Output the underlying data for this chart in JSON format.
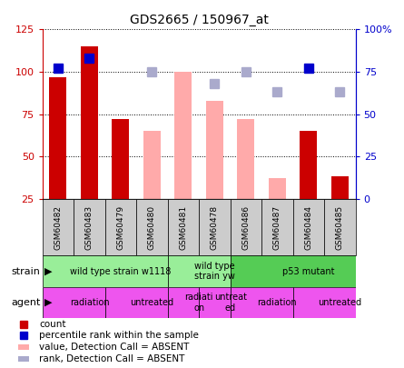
{
  "title": "GDS2665 / 150967_at",
  "samples": [
    "GSM60482",
    "GSM60483",
    "GSM60479",
    "GSM60480",
    "GSM60481",
    "GSM60478",
    "GSM60486",
    "GSM60487",
    "GSM60484",
    "GSM60485"
  ],
  "count_values": [
    97,
    115,
    72,
    null,
    null,
    null,
    null,
    null,
    65,
    38
  ],
  "count_color": "#cc0000",
  "pct_rank_values": [
    77,
    83,
    null,
    null,
    null,
    null,
    null,
    null,
    77,
    null
  ],
  "pct_rank_color": "#0000cc",
  "absent_value_values": [
    null,
    null,
    null,
    65,
    100,
    83,
    72,
    37,
    null,
    null
  ],
  "absent_value_color": "#ffaaaa",
  "absent_rank_values": [
    null,
    null,
    null,
    75,
    null,
    68,
    75,
    63,
    null,
    63
  ],
  "absent_rank_color": "#aaaacc",
  "ylim_left": [
    25,
    125
  ],
  "ylim_right": [
    0,
    100
  ],
  "left_ticks": [
    25,
    50,
    75,
    100,
    125
  ],
  "right_ticks": [
    0,
    25,
    50,
    75,
    100
  ],
  "right_tick_labels": [
    "0",
    "25",
    "50",
    "75",
    "100%"
  ],
  "strain_groups": [
    {
      "label": "wild type strain w1118",
      "start": 0,
      "end": 4,
      "color": "#99ee99"
    },
    {
      "label": "wild type\nstrain yw",
      "start": 4,
      "end": 6,
      "color": "#99ee99"
    },
    {
      "label": "p53 mutant",
      "start": 6,
      "end": 10,
      "color": "#55cc55"
    }
  ],
  "agent_groups": [
    {
      "label": "radiation",
      "start": 0,
      "end": 2,
      "color": "#ee55ee"
    },
    {
      "label": "untreated",
      "start": 2,
      "end": 4,
      "color": "#ee55ee"
    },
    {
      "label": "radiati-\non",
      "start": 4,
      "end": 5,
      "color": "#ee55ee"
    },
    {
      "label": "untreat-\ned",
      "start": 5,
      "end": 6,
      "color": "#ee55ee"
    },
    {
      "label": "radiation",
      "start": 6,
      "end": 8,
      "color": "#ee55ee"
    },
    {
      "label": "untreated",
      "start": 8,
      "end": 10,
      "color": "#ee55ee"
    }
  ],
  "bar_width": 0.55,
  "xtick_bg": "#cccccc",
  "legend_items": [
    {
      "color": "#cc0000",
      "marker": "s",
      "label": "count"
    },
    {
      "color": "#0000cc",
      "marker": "s",
      "label": "percentile rank within the sample"
    },
    {
      "color": "#ffaaaa",
      "marker": "rect",
      "label": "value, Detection Call = ABSENT"
    },
    {
      "color": "#aaaacc",
      "marker": "rect",
      "label": "rank, Detection Call = ABSENT"
    }
  ]
}
